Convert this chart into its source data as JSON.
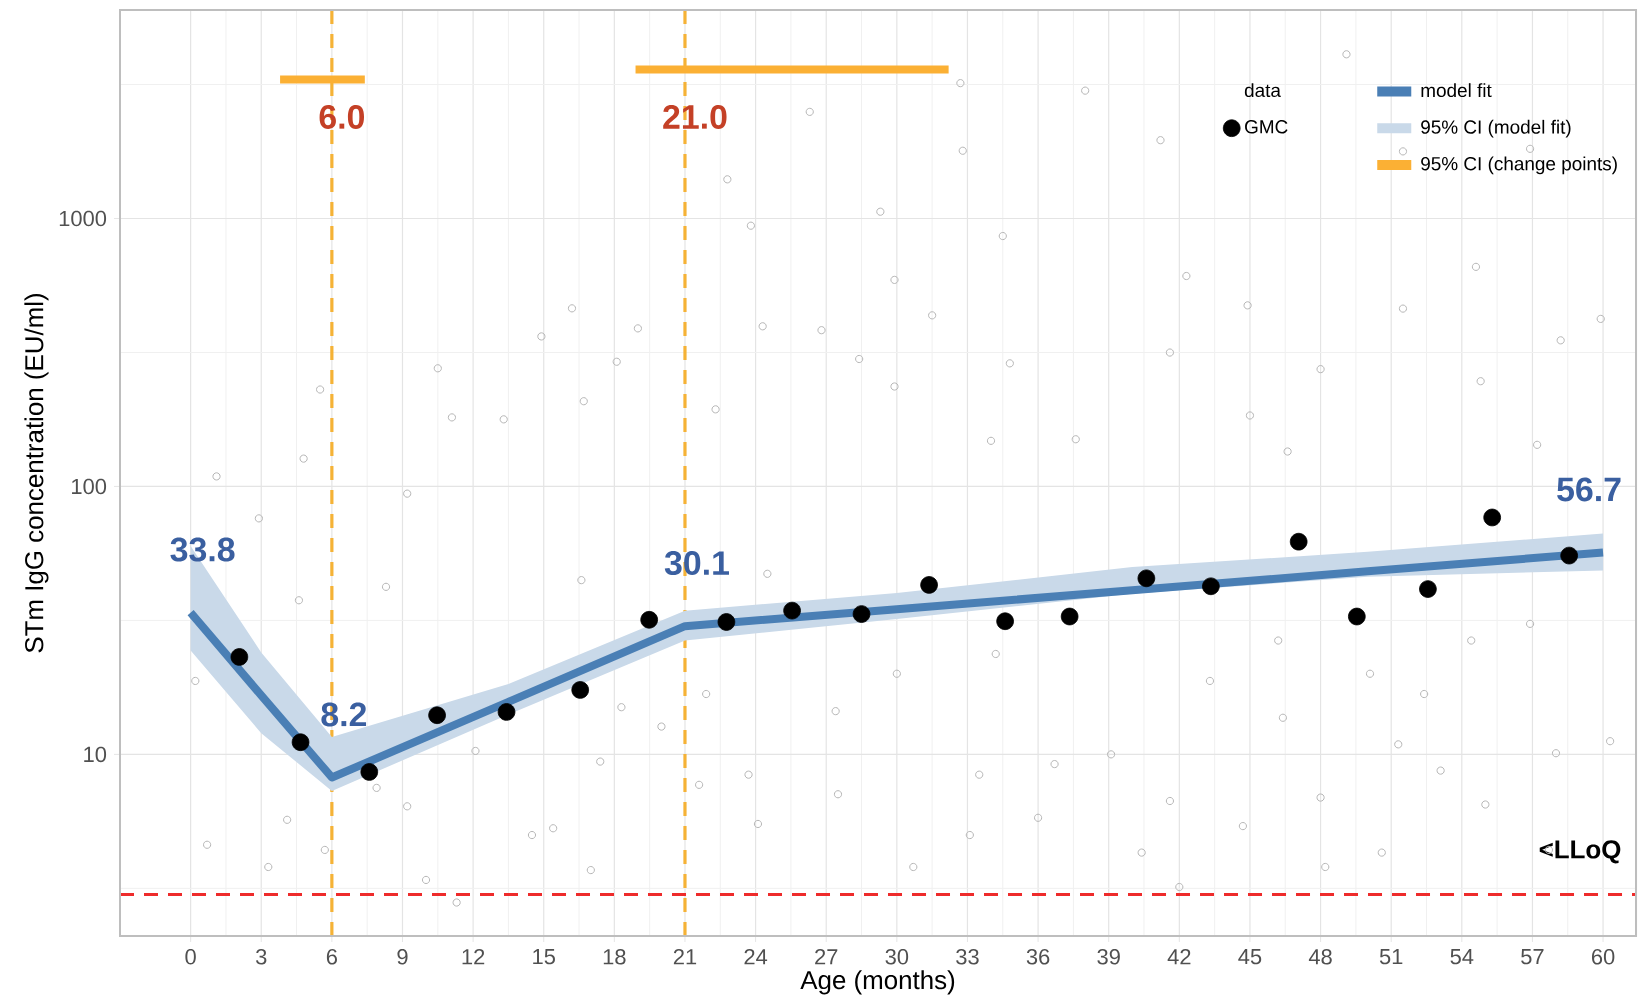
{
  "chart_data": {
    "type": "line",
    "xlabel": "Age (months)",
    "ylabel": "STm IgG concentration (EU/ml)",
    "legend_title": "data",
    "xlim": [
      -3,
      61.4
    ],
    "xticks": [
      0,
      3,
      6,
      9,
      12,
      15,
      18,
      21,
      24,
      27,
      30,
      33,
      36,
      39,
      42,
      45,
      48,
      51,
      54,
      57,
      60
    ],
    "ylim": [
      2.1,
      6000
    ],
    "yticks": [
      10,
      100,
      1000
    ],
    "log": "y",
    "grid": true,
    "legend": "top right",
    "series": [
      {
        "type": "scatter",
        "color": "#b5b5b5",
        "x": [
          1.1,
          4.8,
          5.5,
          10.5,
          11.1,
          13.3,
          14.9,
          16.2,
          16.7,
          18.1,
          19.0,
          22.8,
          23.8,
          24.3,
          26.3,
          22.3,
          9.2,
          49.1,
          32.7,
          38.0,
          32.8,
          41.2,
          51.5,
          56.9,
          29.3,
          34.5,
          42.3,
          54.6,
          29.9,
          31.5,
          44.9,
          51.5,
          59.9,
          26.8,
          28.4,
          41.6,
          48.0,
          58.2,
          34.8,
          29.9,
          45.0,
          54.8,
          57.2,
          34.0,
          37.6,
          46.6,
          2.9,
          0.7,
          3.3,
          4.6,
          4.1,
          5.7,
          7.9,
          9.2,
          10.0,
          11.3,
          12.1,
          14.5,
          15.4,
          17.4,
          17.0,
          18.3,
          20.0,
          21.6,
          21.9,
          24.1,
          23.7,
          0.2,
          8.3,
          16.6,
          24.5,
          27.4,
          27.5,
          30.7,
          33.1,
          33.5,
          36.0,
          36.7,
          39.1,
          40.4,
          42.0,
          41.6,
          44.7,
          46.4,
          48.0,
          48.2,
          50.6,
          53.1,
          55.0,
          58.0,
          60.3,
          57.7,
          51.3,
          54.4,
          56.9,
          30.0,
          34.2,
          43.3,
          46.2,
          50.1,
          52.4
        ],
        "values": [
          109,
          127,
          230,
          276,
          181,
          178,
          363,
          462,
          208,
          292,
          389,
          1400,
          940,
          396,
          2500,
          194,
          94,
          4100,
          3200,
          3000,
          1790,
          1960,
          1780,
          1820,
          1060,
          860,
          610,
          660,
          590,
          435,
          474,
          461,
          422,
          383,
          299,
          316,
          274,
          351,
          288,
          236,
          184,
          247,
          143,
          148,
          150,
          135,
          76,
          4.6,
          3.8,
          37.6,
          5.7,
          4.4,
          7.5,
          6.4,
          3.4,
          2.8,
          10.3,
          5.0,
          5.3,
          9.4,
          3.7,
          15.0,
          12.7,
          7.7,
          16.8,
          5.5,
          8.4,
          18.8,
          42.2,
          44.7,
          47.2,
          14.5,
          7.1,
          3.8,
          5.0,
          8.4,
          5.8,
          9.2,
          10.0,
          4.3,
          3.2,
          6.7,
          5.4,
          13.7,
          6.9,
          3.8,
          4.3,
          8.7,
          6.5,
          10.1,
          11.2,
          4.4,
          10.9,
          26.6,
          30.7,
          20,
          23.7,
          18.8,
          26.6,
          20,
          16.8
        ]
      },
      {
        "name": "model fit",
        "color": "#4a7fb5",
        "x": [
          0,
          3,
          6,
          13.5,
          21,
          30,
          40,
          50,
          60
        ],
        "values": [
          33.8,
          16.6,
          8.2,
          15.7,
          30.1,
          34.8,
          41.0,
          48.2,
          56.7
        ],
        "lower": [
          24.4,
          12,
          7.3,
          14.1,
          26.6,
          32,
          39.8,
          46,
          48.6
        ],
        "upper": [
          59.9,
          24,
          11.6,
          18.3,
          34.4,
          40,
          50,
          57,
          66.7
        ]
      },
      {
        "type": "scatter",
        "name": "GMC",
        "color": "#000000",
        "x": [
          2.07,
          4.67,
          7.59,
          10.47,
          13.42,
          16.55,
          19.48,
          22.76,
          25.55,
          28.5,
          31.37,
          34.6,
          37.34,
          40.6,
          43.34,
          47.07,
          49.54,
          52.56,
          55.29,
          58.56
        ],
        "values": [
          23.1,
          11.1,
          8.6,
          14.0,
          14.4,
          17.4,
          31.8,
          31.2,
          34.4,
          33.4,
          42.9,
          31.4,
          32.7,
          45.4,
          42.4,
          62.2,
          32.7,
          41.4,
          76.6,
          55.2
        ]
      },
      {
        "name": "95% CI (change points)",
        "color": "#fbb034",
        "x": [
          3.8,
          7.4
        ],
        "values": [
          3300,
          3300
        ]
      },
      {
        "color": "#fbb034",
        "x": [
          18.9,
          32.2
        ],
        "values": [
          3600,
          3600
        ]
      }
    ],
    "ref_lines": [
      {
        "axis": "x",
        "value": 6,
        "label": "6.0",
        "color": "#f5b236",
        "line_style": "dashed"
      },
      {
        "axis": "x",
        "value": 21,
        "label": "21.0",
        "color": "#f5b236",
        "line_style": "dashed"
      },
      {
        "axis": "y",
        "value": 3,
        "label": "<LLoQ",
        "color": "#ee2b2b",
        "line_style": "dashed"
      }
    ],
    "annotations": [
      {
        "text": "33.8",
        "x": 0,
        "y": 33.8
      },
      {
        "text": "8.2",
        "x": 6,
        "y": 8.2
      },
      {
        "text": "30.1",
        "x": 21,
        "y": 30.1
      },
      {
        "text": "56.7",
        "x": 60,
        "y": 56.7
      },
      "95% CI (model fit)"
    ]
  }
}
